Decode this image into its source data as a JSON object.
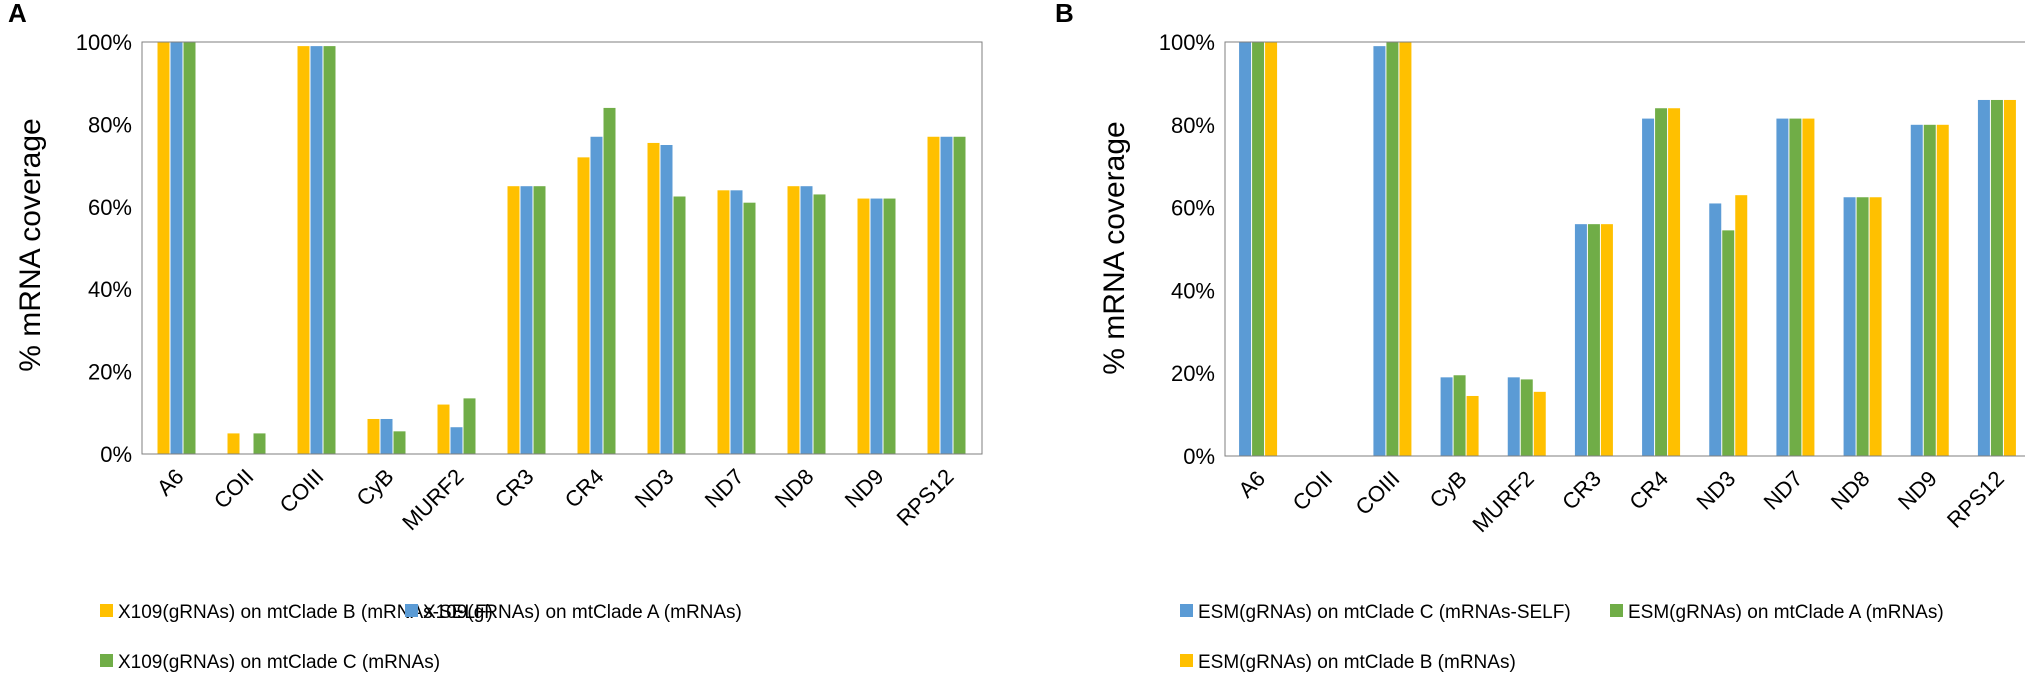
{
  "chart_data": [
    {
      "type": "bar",
      "panel": "A",
      "ylabel": "% mRNA coverage",
      "xlabel": "",
      "ylim": [
        0,
        100
      ],
      "yticks": [
        "0%",
        "20%",
        "40%",
        "60%",
        "80%",
        "100%"
      ],
      "grid": false,
      "legend_position": "bottom",
      "categories": [
        "A6",
        "COII",
        "COIII",
        "CyB",
        "MURF2",
        "CR3",
        "CR4",
        "ND3",
        "ND7",
        "ND8",
        "ND9",
        "RPS12"
      ],
      "series": [
        {
          "name": "X109(gRNAs) on mtClade B (mRNAs-SELF)",
          "color": "#FFC000",
          "values": [
            100,
            5,
            99,
            8.5,
            12,
            65,
            72,
            75.5,
            64,
            65,
            62,
            77
          ]
        },
        {
          "name": "X109(gRNAs) on mtClade A (mRNAs)",
          "color": "#5B9BD5",
          "values": [
            100,
            0,
            99,
            8.5,
            6.5,
            65,
            77,
            75,
            64,
            65,
            62,
            77
          ]
        },
        {
          "name": "X109(gRNAs) on mtClade C (mRNAs)",
          "color": "#70AD47",
          "values": [
            100,
            5,
            99,
            5.5,
            13.5,
            65,
            84,
            62.5,
            61,
            63,
            62,
            77
          ]
        }
      ]
    },
    {
      "type": "bar",
      "panel": "B",
      "ylabel": "% mRNA coverage",
      "xlabel": "",
      "ylim": [
        0,
        100
      ],
      "yticks": [
        "0%",
        "20%",
        "40%",
        "60%",
        "80%",
        "100%"
      ],
      "grid": false,
      "legend_position": "bottom",
      "categories": [
        "A6",
        "COII",
        "COIII",
        "CyB",
        "MURF2",
        "CR3",
        "CR4",
        "ND3",
        "ND7",
        "ND8",
        "ND9",
        "RPS12"
      ],
      "series": [
        {
          "name": "ESM(gRNAs) on mtClade C (mRNAs-SELF)",
          "color": "#5B9BD5",
          "values": [
            100,
            0,
            99,
            19,
            19,
            56,
            81.5,
            61,
            81.5,
            62.5,
            80,
            86
          ]
        },
        {
          "name": "ESM(gRNAs) on mtClade A (mRNAs)",
          "color": "#70AD47",
          "values": [
            100,
            0,
            100,
            19.5,
            18.5,
            56,
            84,
            54.5,
            81.5,
            62.5,
            80,
            86
          ]
        },
        {
          "name": "ESM(gRNAs) on mtClade B (mRNAs)",
          "color": "#FFC000",
          "values": [
            100,
            0,
            100,
            14.5,
            15.5,
            56,
            84,
            63,
            81.5,
            62.5,
            80,
            86
          ]
        }
      ]
    }
  ]
}
